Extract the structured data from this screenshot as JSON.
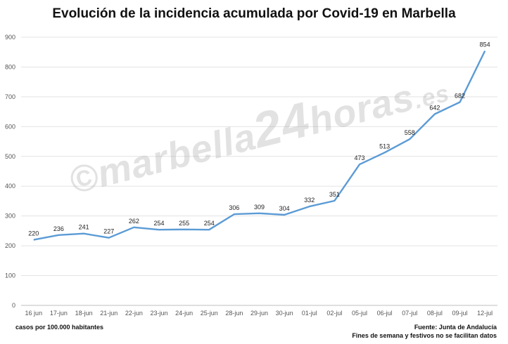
{
  "chart_data": {
    "type": "line",
    "title": "Evolución de la incidencia acumulada por Covid-19 en Marbella",
    "categories": [
      "16 jun",
      "17-jun",
      "18-jun",
      "21-jun",
      "22-jun",
      "23-jun",
      "24-jun",
      "25-jun",
      "28-jun",
      "29-jun",
      "30-jun",
      "01-jul",
      "02-jul",
      "05-jul",
      "06-jul",
      "07-jul",
      "08-jul",
      "09-jul",
      "12-jul"
    ],
    "series": [
      {
        "values": [
          220,
          236,
          241,
          227,
          262,
          254,
          255,
          254,
          306,
          309,
          304,
          332,
          351,
          473,
          513,
          558,
          642,
          682,
          854
        ]
      }
    ],
    "ylim": [
      0,
      900
    ],
    "yticks": [
      0,
      100,
      200,
      300,
      400,
      500,
      600,
      700,
      800,
      900
    ],
    "grid": true,
    "line_color": "#5b9bd5",
    "data_labels": true
  },
  "watermark": {
    "symbol": "©",
    "part1": "marbella",
    "part2": "24",
    "part3": "horas",
    "part4": ".es"
  },
  "footer": {
    "left": "casos por 100.000 habitantes",
    "source": "Fuente: Junta de Andalucía",
    "note": "Fines de semana y festivos no se facilitan datos"
  }
}
